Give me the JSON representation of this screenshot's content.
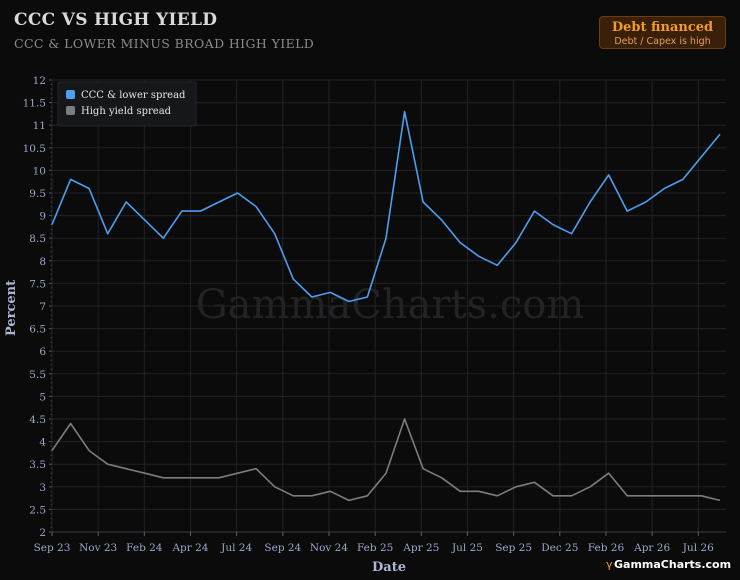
{
  "header": {
    "title": "CCC VS HIGH YIELD",
    "subtitle": "CCC & LOWER MINUS BROAD HIGH YIELD"
  },
  "badge": {
    "title": "Debt financed",
    "subtitle": "Debt / Capex is high"
  },
  "watermark": "GammaCharts.com",
  "brand": "GammaCharts.com",
  "colors": {
    "ccc": "#4e9ef0",
    "hy": "#7d7d80",
    "grid": "#232327"
  },
  "chart_data": {
    "type": "line",
    "xlabel": "Date",
    "ylabel": "Percent",
    "ylim": [
      2,
      12
    ],
    "yticks": [
      2,
      2.5,
      3,
      3.5,
      4,
      4.5,
      5,
      5.5,
      6,
      6.5,
      7,
      7.5,
      8,
      8.5,
      9,
      9.5,
      10,
      10.5,
      11,
      11.5,
      12
    ],
    "xticks": [
      "Sep 23",
      "Nov 23",
      "Feb 24",
      "Apr 24",
      "Jul 24",
      "Sep 24",
      "Nov 24",
      "Feb 25",
      "Apr 25",
      "Jul 25",
      "Sep 25",
      "Dec 25",
      "Feb 26",
      "Apr 26",
      "Jul 26"
    ],
    "grid": true,
    "legend_position": "top-left",
    "x": [
      "2023-09",
      "2023-10",
      "2023-11",
      "2023-12",
      "2024-01",
      "2024-02",
      "2024-03",
      "2024-04",
      "2024-05",
      "2024-06",
      "2024-07",
      "2024-08",
      "2024-09",
      "2024-10",
      "2024-11",
      "2024-12",
      "2025-01",
      "2025-02",
      "2025-03",
      "2025-04",
      "2025-05",
      "2025-06",
      "2025-07",
      "2025-08",
      "2025-09",
      "2025-10",
      "2025-11",
      "2025-12",
      "2026-01",
      "2026-02",
      "2026-03",
      "2026-04",
      "2026-05",
      "2026-06",
      "2026-07",
      "2026-08",
      "2026-09"
    ],
    "series": [
      {
        "name": "CCC & lower spread",
        "values": [
          8.8,
          9.8,
          9.6,
          8.6,
          9.3,
          8.9,
          8.5,
          9.1,
          9.1,
          9.3,
          9.5,
          9.2,
          8.6,
          7.6,
          7.2,
          7.3,
          7.1,
          7.2,
          8.5,
          11.3,
          9.3,
          8.9,
          8.4,
          8.1,
          7.9,
          8.4,
          9.1,
          8.8,
          8.6,
          9.3,
          9.9,
          9.1,
          9.3,
          9.6,
          9.8,
          10.3,
          10.8
        ]
      },
      {
        "name": "High yield spread",
        "values": [
          3.8,
          4.4,
          3.8,
          3.5,
          3.4,
          3.3,
          3.2,
          3.2,
          3.2,
          3.2,
          3.3,
          3.4,
          3.0,
          2.8,
          2.8,
          2.9,
          2.7,
          2.8,
          3.3,
          4.5,
          3.4,
          3.2,
          2.9,
          2.9,
          2.8,
          3.0,
          3.1,
          2.8,
          2.8,
          3.0,
          3.3,
          2.8,
          2.8,
          2.8,
          2.8,
          2.8,
          2.7
        ]
      }
    ]
  }
}
